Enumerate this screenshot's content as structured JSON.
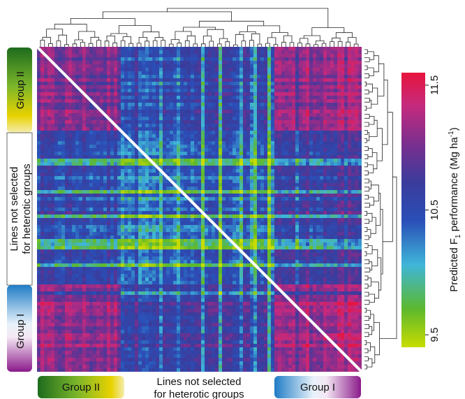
{
  "chart_data": {
    "type": "heatmap",
    "title": "",
    "colorbar": {
      "label_prefix": "Predicted F",
      "label_subscript": "1",
      "label_middle": " performance (Mg ha",
      "label_superscript": "-1",
      "label_suffix": ")",
      "ticks": [
        "9.5",
        "10.5",
        "11.5"
      ],
      "tick_values": [
        9.5,
        10.5,
        11.5
      ],
      "range": [
        9.4,
        11.6
      ],
      "colors": [
        "#c8dc00",
        "#5cb82e",
        "#3fb6d8",
        "#2a4fb8",
        "#3a3c9c",
        "#7a2f8f",
        "#c42a7e",
        "#e8143c"
      ]
    },
    "row_groups": [
      {
        "name": "Group II",
        "colors": [
          "#1d6b1d",
          "#e8d200"
        ]
      },
      {
        "name": "Lines not selected for heterotic groups",
        "line1": "Lines not selected",
        "line2": "for heterotic groups"
      },
      {
        "name": "Group I",
        "colors": [
          "#1f7cc6",
          "#ffffff",
          "#8a1a8a"
        ]
      }
    ],
    "col_groups": [
      {
        "name": "Group II"
      },
      {
        "name": "Lines not selected for heterotic groups",
        "line1": "Lines not selected",
        "line2": "for heterotic groups"
      },
      {
        "name": "Group I"
      }
    ],
    "diagonal_split": true,
    "dendrograms": [
      "top",
      "right"
    ],
    "legend_position": "right"
  }
}
